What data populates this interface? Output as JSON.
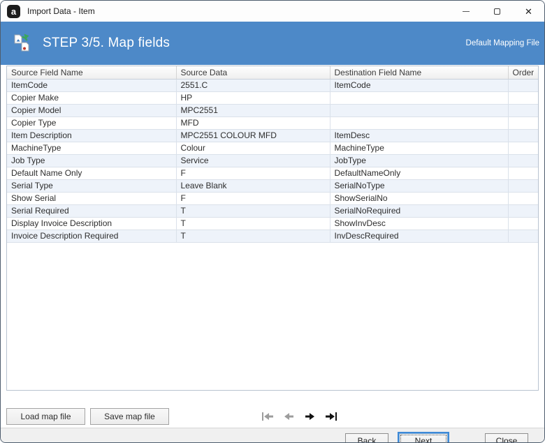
{
  "window": {
    "title": "Import Data - Item",
    "controls": {
      "minimize": "minimize",
      "maximize": "maximize",
      "close": "close"
    }
  },
  "header": {
    "step_title": "STEP 3/5. Map fields",
    "right_label": "Default Mapping File",
    "icon": "import-data-icon"
  },
  "table": {
    "columns": [
      "Source Field Name",
      "Source Data",
      "Destination Field Name",
      "Order"
    ],
    "rows": [
      [
        "ItemCode",
        "2551.C",
        "ItemCode",
        ""
      ],
      [
        "Copier Make",
        "HP",
        "",
        ""
      ],
      [
        "Copier Model",
        "MPC2551",
        "",
        ""
      ],
      [
        "Copier Type",
        "MFD",
        "",
        ""
      ],
      [
        "Item Description",
        "MPC2551 COLOUR MFD",
        "ItemDesc",
        ""
      ],
      [
        "MachineType",
        "Colour",
        "MachineType",
        ""
      ],
      [
        "Job Type",
        "Service",
        "JobType",
        ""
      ],
      [
        "Default Name Only",
        "F",
        "DefaultNameOnly",
        ""
      ],
      [
        "Serial Type",
        "Leave Blank",
        "SerialNoType",
        ""
      ],
      [
        "Show Serial",
        "F",
        "ShowSerialNo",
        ""
      ],
      [
        "Serial Required",
        "T",
        "SerialNoRequired",
        ""
      ],
      [
        "Display Invoice Description",
        "T",
        "ShowInvDesc",
        ""
      ],
      [
        "Invoice Description Required",
        "T",
        "InvDescRequired",
        ""
      ]
    ]
  },
  "toolbar": {
    "load_label": "Load map file",
    "save_label": "Save map file",
    "nav": {
      "first": "first-record-icon",
      "prev": "previous-record-icon",
      "next": "next-record-icon",
      "last": "last-record-icon",
      "first_enabled": false,
      "prev_enabled": false,
      "next_enabled": true,
      "last_enabled": true
    }
  },
  "footer": {
    "back_label": "Back",
    "next_label": "Next",
    "close_label": "Close",
    "focused_button": "Next"
  },
  "colors": {
    "accent": "#4d89c8",
    "alt_row": "#eef3fa",
    "grid_line": "#dae1ea",
    "footer_bg": "#f0f0f0",
    "focus_ring": "#3d8ad8",
    "nav_disabled": "#9d9d9d",
    "nav_enabled": "#121212"
  }
}
